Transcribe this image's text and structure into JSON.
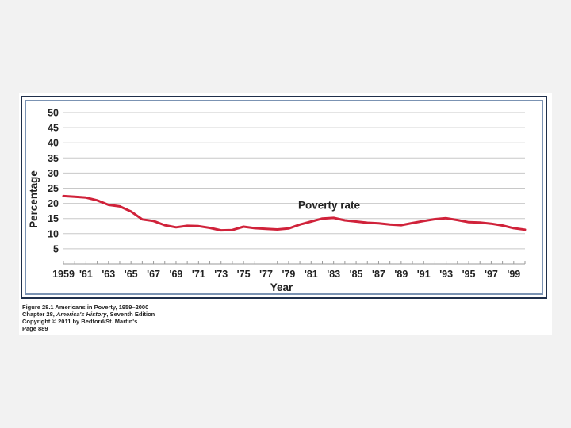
{
  "chart_data": {
    "type": "line",
    "title": "",
    "xlabel": "Year",
    "ylabel": "Percentage",
    "ylim": [
      0,
      50
    ],
    "yticks": [
      "5",
      "10",
      "15",
      "20",
      "25",
      "30",
      "35",
      "40",
      "45",
      "50"
    ],
    "xticks": [
      "1959",
      "'61",
      "'63",
      "'65",
      "'67",
      "'69",
      "'71",
      "'73",
      "'75",
      "'77",
      "'79",
      "'81",
      "'83",
      "'85",
      "'87",
      "'89",
      "'91",
      "'93",
      "'95",
      "'97",
      "'99"
    ],
    "grid": true,
    "series": [
      {
        "name": "Poverty rate",
        "color": "#d0223a",
        "x": [
          1959,
          1960,
          1961,
          1962,
          1963,
          1964,
          1965,
          1966,
          1967,
          1968,
          1969,
          1970,
          1971,
          1972,
          1973,
          1974,
          1975,
          1976,
          1977,
          1978,
          1979,
          1980,
          1981,
          1982,
          1983,
          1984,
          1985,
          1986,
          1987,
          1988,
          1989,
          1990,
          1991,
          1992,
          1993,
          1994,
          1995,
          1996,
          1997,
          1998,
          1999,
          2000
        ],
        "values": [
          22.4,
          22.2,
          21.9,
          21.0,
          19.5,
          19.0,
          17.3,
          14.7,
          14.2,
          12.8,
          12.1,
          12.6,
          12.5,
          11.9,
          11.1,
          11.2,
          12.3,
          11.8,
          11.6,
          11.4,
          11.7,
          13.0,
          14.0,
          15.0,
          15.2,
          14.4,
          14.0,
          13.6,
          13.4,
          13.0,
          12.8,
          13.5,
          14.2,
          14.8,
          15.1,
          14.5,
          13.8,
          13.7,
          13.3,
          12.7,
          11.8,
          11.3
        ]
      }
    ]
  },
  "caption": {
    "line1": "Figure 28.1 Americans in Poverty, 1959–2000",
    "line2_prefix": "Chapter 28, ",
    "line2_title": "America's History",
    "line2_suffix": ", Seventh Edition",
    "line3": "Copyright © 2011 by Bedford/St. Martin's",
    "line4": "Page 889"
  }
}
